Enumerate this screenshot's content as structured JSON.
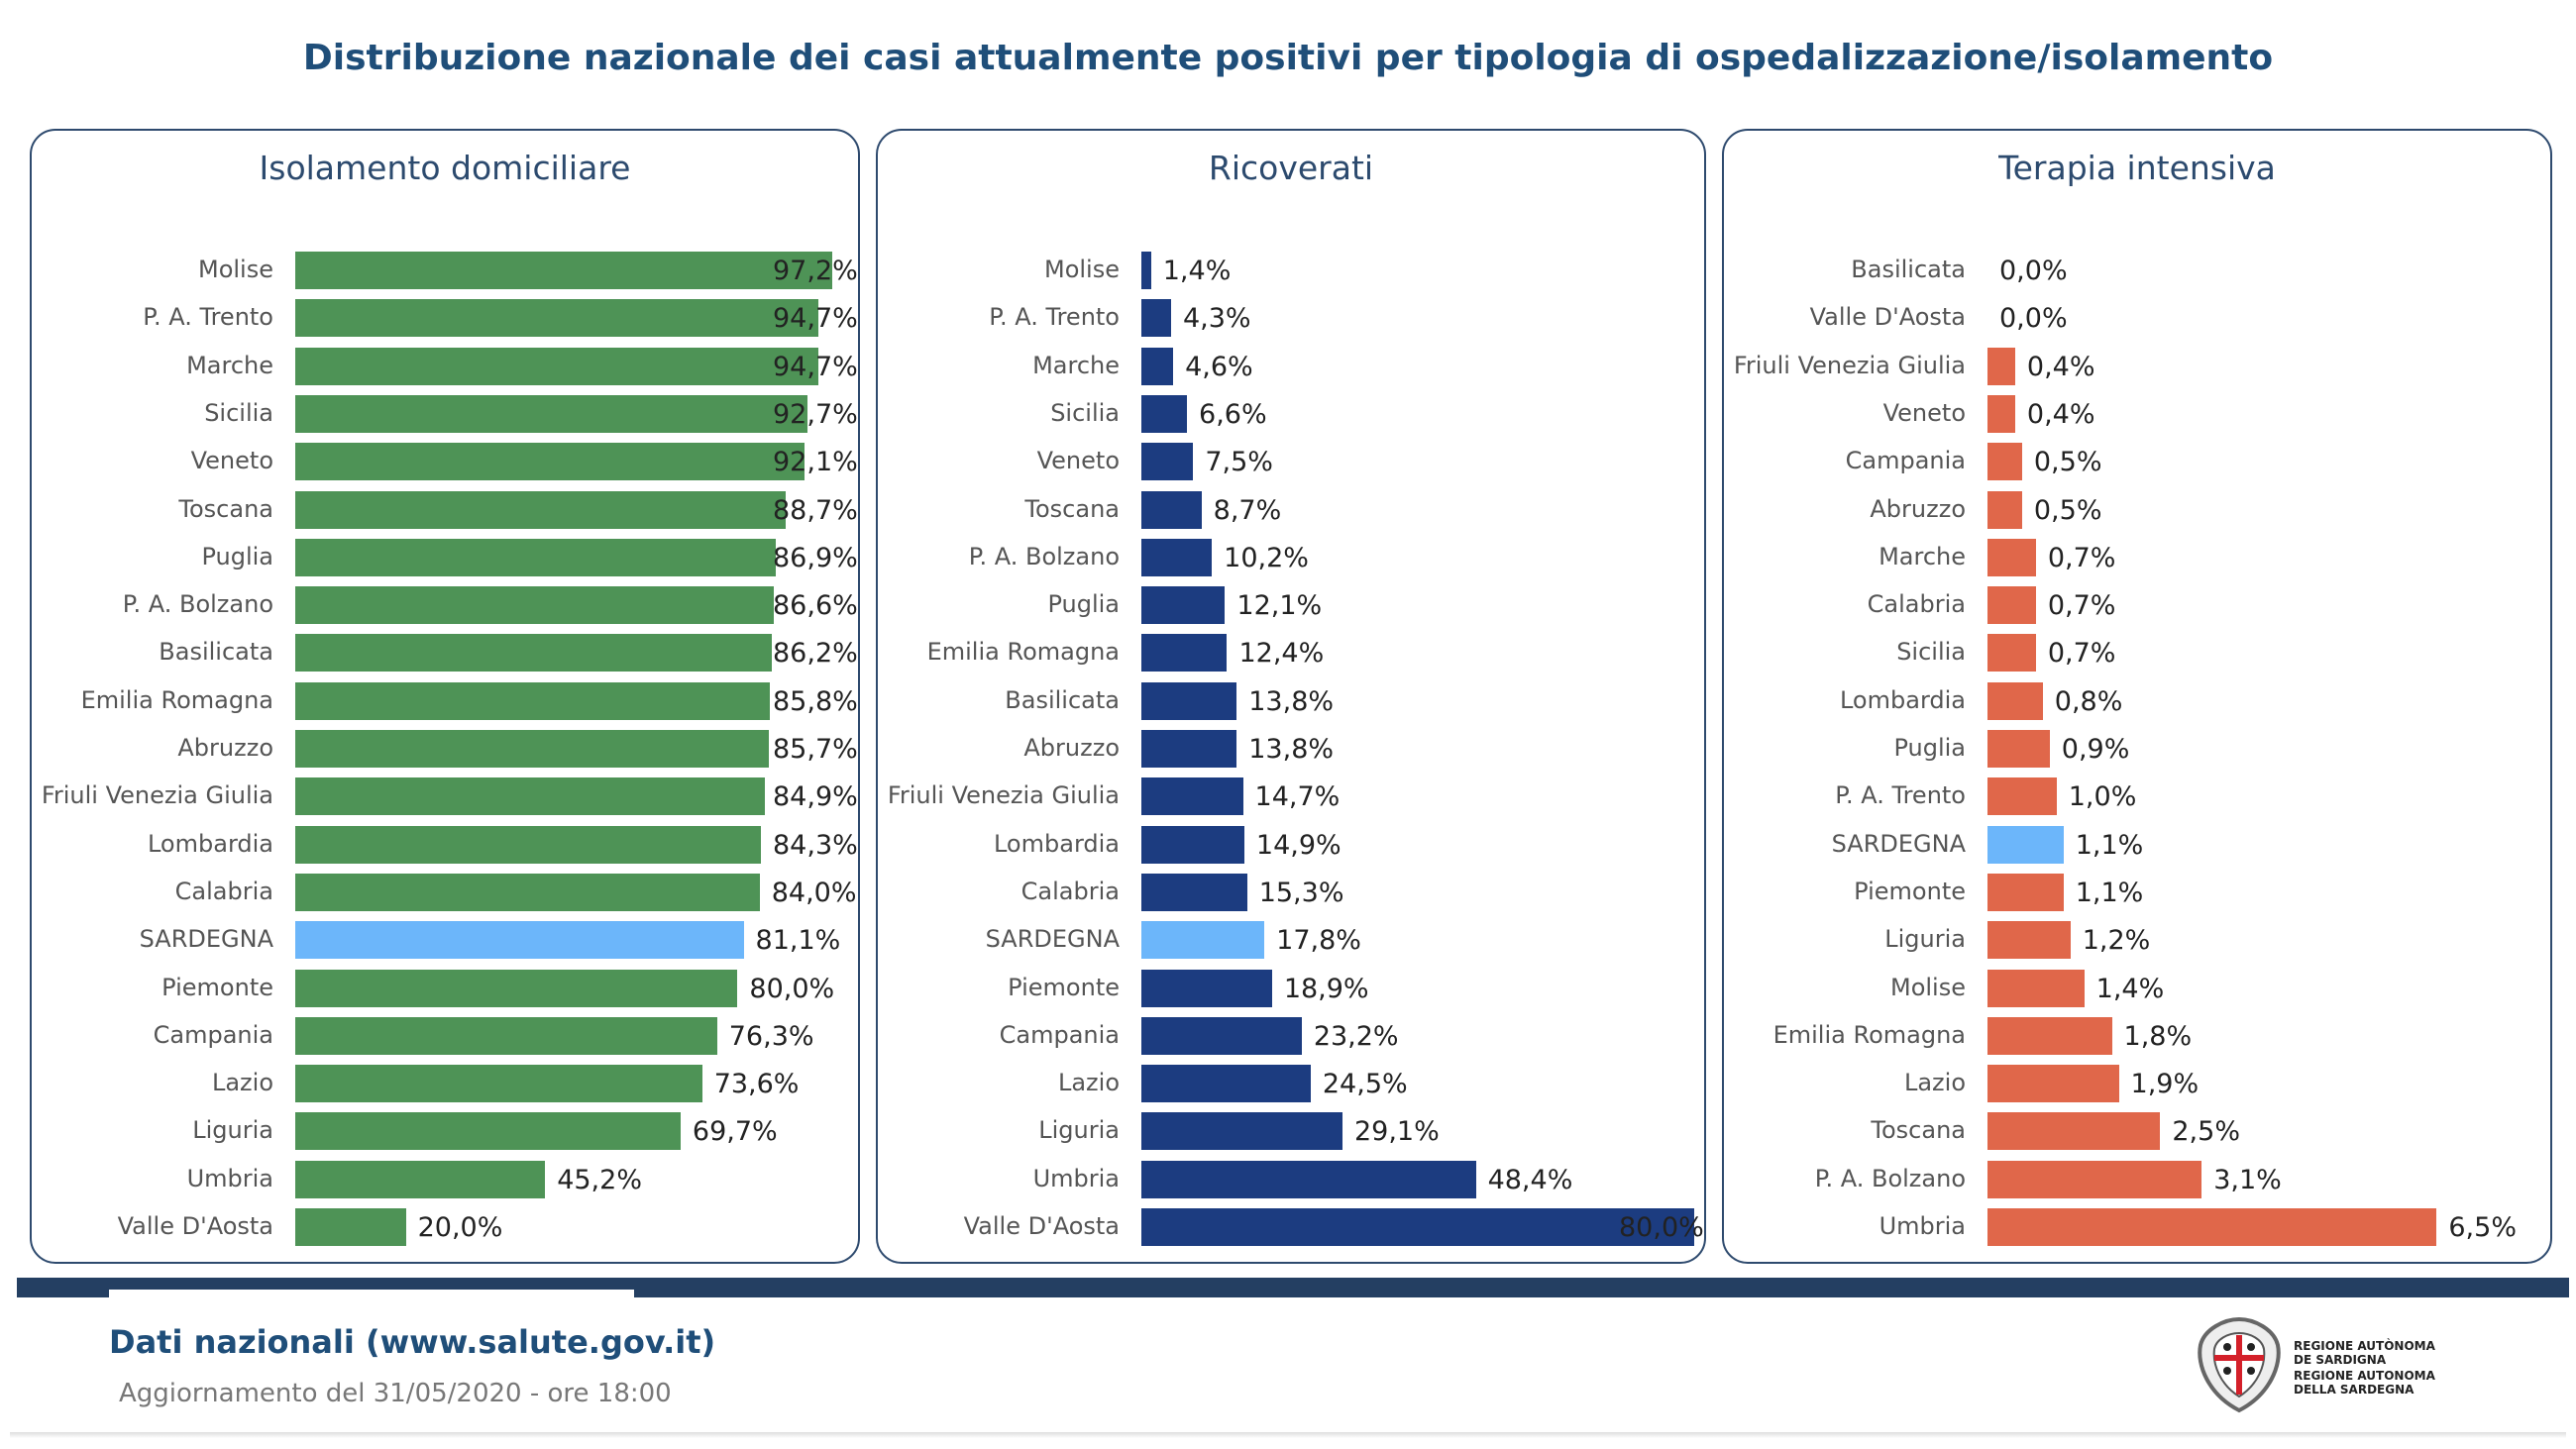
{
  "title": "Distribuzione nazionale dei casi attualmente positivi per tipologia di ospedalizzazione/isolamento",
  "colors": {
    "title": "#1f4e79",
    "highlight": "#6cb6fa"
  },
  "chart_data": [
    {
      "type": "bar",
      "orientation": "horizontal",
      "title": "Isolamento domiciliare",
      "color": "#4e9356",
      "highlight_category": "SARDEGNA",
      "xlim": [
        0,
        100
      ],
      "categories": [
        "Molise",
        "P. A. Trento",
        "Marche",
        "Sicilia",
        "Veneto",
        "Toscana",
        "Puglia",
        "P. A. Bolzano",
        "Basilicata",
        "Emilia Romagna",
        "Abruzzo",
        "Friuli Venezia Giulia",
        "Lombardia",
        "Calabria",
        "SARDEGNA",
        "Piemonte",
        "Campania",
        "Lazio",
        "Liguria",
        "Umbria",
        "Valle D'Aosta"
      ],
      "values": [
        97.2,
        94.7,
        94.7,
        92.7,
        92.1,
        88.7,
        86.9,
        86.6,
        86.2,
        85.8,
        85.7,
        84.9,
        84.3,
        84.0,
        81.1,
        80.0,
        76.3,
        73.6,
        69.7,
        45.2,
        20.0
      ],
      "labels": [
        "97,2%",
        "94,7%",
        "94,7%",
        "92,7%",
        "92,1%",
        "88,7%",
        "86,9%",
        "86,6%",
        "86,2%",
        "85,8%",
        "85,7%",
        "84,9%",
        "84,3%",
        "84,0%",
        "81,1%",
        "80,0%",
        "76,3%",
        "73,6%",
        "69,7%",
        "45,2%",
        "20,0%"
      ]
    },
    {
      "type": "bar",
      "orientation": "horizontal",
      "title": "Ricoverati",
      "color": "#1c3c80",
      "highlight_category": "SARDEGNA",
      "xlim": [
        0,
        80
      ],
      "categories": [
        "Molise",
        "P. A. Trento",
        "Marche",
        "Sicilia",
        "Veneto",
        "Toscana",
        "P. A. Bolzano",
        "Puglia",
        "Emilia Romagna",
        "Basilicata",
        "Abruzzo",
        "Friuli Venezia Giulia",
        "Lombardia",
        "Calabria",
        "SARDEGNA",
        "Piemonte",
        "Campania",
        "Lazio",
        "Liguria",
        "Umbria",
        "Valle D'Aosta"
      ],
      "values": [
        1.4,
        4.3,
        4.6,
        6.6,
        7.5,
        8.7,
        10.2,
        12.1,
        12.4,
        13.8,
        13.8,
        14.7,
        14.9,
        15.3,
        17.8,
        18.9,
        23.2,
        24.5,
        29.1,
        48.4,
        80.0
      ],
      "labels": [
        "1,4%",
        "4,3%",
        "4,6%",
        "6,6%",
        "7,5%",
        "8,7%",
        "10,2%",
        "12,1%",
        "12,4%",
        "13,8%",
        "13,8%",
        "14,7%",
        "14,9%",
        "15,3%",
        "17,8%",
        "18,9%",
        "23,2%",
        "24,5%",
        "29,1%",
        "48,4%",
        "80,0%"
      ]
    },
    {
      "type": "bar",
      "orientation": "horizontal",
      "title": "Terapia intensiva",
      "color": "#e0674a",
      "highlight_category": "SARDEGNA",
      "xlim": [
        0,
        8
      ],
      "categories": [
        "Basilicata",
        "Valle D'Aosta",
        "Friuli Venezia Giulia",
        "Veneto",
        "Campania",
        "Abruzzo",
        "Marche",
        "Calabria",
        "Sicilia",
        "Lombardia",
        "Puglia",
        "P. A. Trento",
        "SARDEGNA",
        "Piemonte",
        "Liguria",
        "Molise",
        "Emilia Romagna",
        "Lazio",
        "Toscana",
        "P. A. Bolzano",
        "Umbria"
      ],
      "values": [
        0.0,
        0.0,
        0.4,
        0.4,
        0.5,
        0.5,
        0.7,
        0.7,
        0.7,
        0.8,
        0.9,
        1.0,
        1.1,
        1.1,
        1.2,
        1.4,
        1.8,
        1.9,
        2.5,
        3.1,
        6.5
      ],
      "labels": [
        "0,0%",
        "0,0%",
        "0,4%",
        "0,4%",
        "0,5%",
        "0,5%",
        "0,7%",
        "0,7%",
        "0,7%",
        "0,8%",
        "0,9%",
        "1,0%",
        "1,1%",
        "1,1%",
        "1,2%",
        "1,4%",
        "1,8%",
        "1,9%",
        "2,5%",
        "3,1%",
        "6,5%"
      ]
    }
  ],
  "footer": {
    "source": "Dati nazionali (www.salute.gov.it)",
    "updated": "Aggiornamento del 31/05/2020 - ore 18:00",
    "logo_text": [
      "REGIONE AUTÒNOMA",
      "DE SARDIGNA",
      "REGIONE AUTONOMA",
      "DELLA SARDEGNA"
    ]
  }
}
